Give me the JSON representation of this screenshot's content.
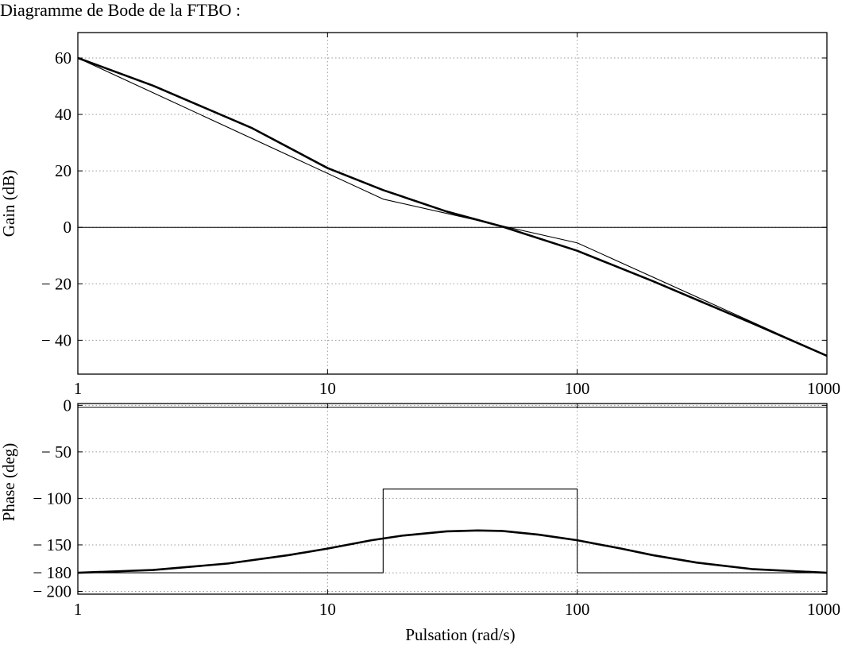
{
  "title": "Diagramme de Bode de la FTBO :",
  "chart_data": [
    {
      "type": "line",
      "xscale": "log",
      "xlim": [
        1,
        1000
      ],
      "ylim": [
        -52,
        69
      ],
      "grid": true,
      "ylabel": "Gain (dB)",
      "xlabel": "",
      "x_ticks": [
        1,
        10,
        100,
        1000
      ],
      "x_tick_labels": [
        "1",
        "10",
        "100",
        "1000"
      ],
      "y_ticks": [
        60,
        40,
        20,
        0,
        -20,
        -40
      ],
      "y_tick_labels": [
        "60",
        "40",
        "20",
        "0",
        "− 20",
        "− 40"
      ],
      "hlines": [
        0
      ],
      "series": [
        {
          "style": "thick",
          "x": [
            1,
            2,
            5,
            10,
            16.7,
            30,
            50,
            100,
            200,
            500,
            1000
          ],
          "y": [
            60,
            50.2,
            35.1,
            21.0,
            13.2,
            5.6,
            0.3,
            -8.3,
            -19.0,
            -33.9,
            -45.5
          ]
        },
        {
          "style": "thin",
          "x": [
            1,
            16.7,
            100,
            1000
          ],
          "y": [
            60,
            10.0,
            -5.5,
            -45.5
          ]
        }
      ]
    },
    {
      "type": "line",
      "xscale": "log",
      "xlim": [
        1,
        1000
      ],
      "ylim": [
        -203,
        2
      ],
      "grid": true,
      "ylabel": "Phase (deg)",
      "xlabel": "Pulsation (rad/s)",
      "x_ticks": [
        1,
        10,
        100,
        1000
      ],
      "x_tick_labels": [
        "1",
        "10",
        "100",
        "1000"
      ],
      "y_ticks": [
        0,
        -50,
        -100,
        -150,
        -180,
        -200
      ],
      "y_tick_labels": [
        "0",
        "− 50",
        "− 100",
        "− 150",
        "− 180",
        "− 200"
      ],
      "hlines": [
        -2
      ],
      "series": [
        {
          "style": "thick",
          "x": [
            1,
            2,
            4,
            7,
            10,
            15,
            20,
            30,
            40,
            50,
            70,
            100,
            150,
            200,
            300,
            500,
            1000
          ],
          "y": [
            -180,
            -177,
            -170,
            -161,
            -154,
            -145,
            -140,
            -135.5,
            -134.5,
            -135,
            -139,
            -145,
            -154,
            -161,
            -169,
            -176,
            -180
          ]
        },
        {
          "style": "thin",
          "x": [
            1,
            16.7,
            16.7,
            100,
            100,
            1000
          ],
          "y": [
            -180,
            -180,
            -90,
            -90,
            -180,
            -180
          ]
        }
      ]
    }
  ]
}
